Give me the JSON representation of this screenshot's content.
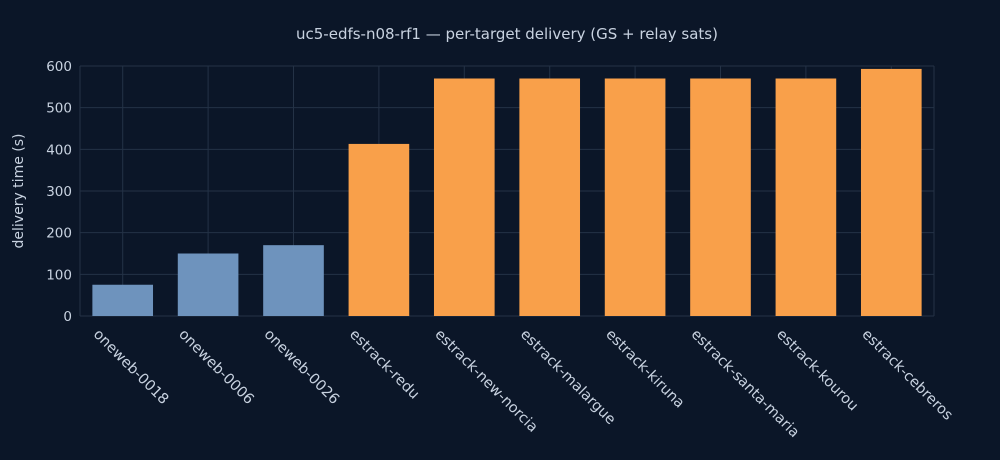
{
  "chart_data": {
    "type": "bar",
    "title": "uc5-edfs-n08-rf1 — per-target delivery (GS + relay sats)",
    "xlabel": "",
    "ylabel": "delivery time (s)",
    "ylim": [
      0,
      600
    ],
    "yticks": [
      0,
      100,
      200,
      300,
      400,
      500,
      600
    ],
    "grid": true,
    "categories": [
      "oneweb-0018",
      "oneweb-0006",
      "oneweb-0026",
      "estrack-redu",
      "estrack-new-norcia",
      "estrack-malargue",
      "estrack-kiruna",
      "estrack-santa-maria",
      "estrack-kourou",
      "estrack-cebreros"
    ],
    "values": [
      75,
      150,
      170,
      413,
      570,
      570,
      570,
      570,
      570,
      593
    ],
    "colors": [
      "#6e93bd",
      "#6e93bd",
      "#6e93bd",
      "#f9a04a",
      "#f9a04a",
      "#f9a04a",
      "#f9a04a",
      "#f9a04a",
      "#f9a04a",
      "#f9a04a"
    ]
  }
}
